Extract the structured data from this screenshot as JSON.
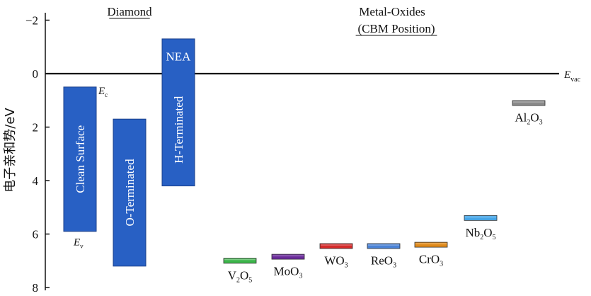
{
  "chart_data": {
    "type": "bar",
    "ylabel": "电子亲和势/eV",
    "ylim": [
      -2.6,
      8
    ],
    "y_inverted": true,
    "yticks": [
      -2,
      0,
      2,
      4,
      6,
      8
    ],
    "ytick_labels": [
      "−2",
      "0",
      "2",
      "4",
      "6",
      "8"
    ],
    "reference_line": {
      "value": 0,
      "label": "E",
      "label_sub": "vac"
    },
    "group_headers": [
      {
        "text": "Diamond",
        "underline": true
      },
      {
        "text": "Metal-Oxides",
        "underline": false
      },
      {
        "text": "(CBM Position)",
        "underline": true
      }
    ],
    "diamond_bars": [
      {
        "label": "Clean Surface",
        "top": 0.5,
        "bottom": 5.9,
        "color": "#2860c4"
      },
      {
        "label": "O-Terminated",
        "top": 1.7,
        "bottom": 7.2,
        "color": "#2860c4"
      },
      {
        "label": "H-Terminated",
        "top": -1.3,
        "bottom": 4.2,
        "color": "#2860c4",
        "inner_label": "NEA"
      }
    ],
    "band_edge_labels": [
      {
        "main": "E",
        "sub": "c",
        "value": 0.5
      },
      {
        "main": "E",
        "sub": "v",
        "value": 5.9
      }
    ],
    "metal_oxides": [
      {
        "base": "V",
        "s1": "2",
        "mid": "O",
        "s2": "5",
        "value": 7.0,
        "color": "#3cb54a"
      },
      {
        "base": "Mo",
        "s1": "",
        "mid": "O",
        "s2": "3",
        "value": 6.85,
        "color": "#6a2a9a"
      },
      {
        "base": "W",
        "s1": "",
        "mid": "O",
        "s2": "3",
        "value": 6.45,
        "color": "#d42a2a"
      },
      {
        "base": "Re",
        "s1": "",
        "mid": "O",
        "s2": "3",
        "value": 6.45,
        "color": "#4a82d6"
      },
      {
        "base": "Cr",
        "s1": "",
        "mid": "O",
        "s2": "3",
        "value": 6.4,
        "color": "#e08a1a"
      },
      {
        "base": "Nb",
        "s1": "2",
        "mid": "O",
        "s2": "5",
        "value": 5.4,
        "color": "#46a6e8"
      },
      {
        "base": "Al",
        "s1": "2",
        "mid": "O",
        "s2": "3",
        "value": 1.1,
        "color": "#8a8a8a"
      }
    ]
  }
}
